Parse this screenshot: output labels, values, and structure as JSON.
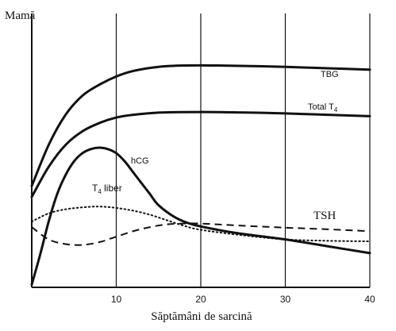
{
  "chart_data": {
    "type": "line",
    "title": "Mamă",
    "xlabel": "Săptămâni de sarcină",
    "ylabel": "",
    "xlim": [
      0,
      40
    ],
    "ylim": [
      0,
      100
    ],
    "xticks": [
      10,
      20,
      30,
      40
    ],
    "grid": "vertical",
    "series": [
      {
        "name": "TBG",
        "style": "solid",
        "x": [
          0,
          2,
          4,
          6,
          8,
          10,
          12,
          15,
          18,
          22,
          26,
          30,
          35,
          40
        ],
        "y": [
          37,
          52,
          63,
          70,
          74,
          77,
          79,
          80.5,
          81,
          81,
          80.8,
          80.5,
          80,
          79.5
        ]
      },
      {
        "name": "Total T4",
        "style": "solid",
        "x": [
          0,
          2,
          4,
          6,
          8,
          10,
          12,
          15,
          18,
          22,
          26,
          30,
          35,
          40
        ],
        "y": [
          33,
          44,
          52,
          57,
          60,
          62,
          63,
          63.8,
          64,
          64,
          63.8,
          63.5,
          63,
          62.5
        ]
      },
      {
        "name": "hCG",
        "style": "solid",
        "x": [
          0,
          1,
          2,
          3,
          4,
          5,
          6,
          7,
          8,
          9,
          10,
          11,
          12,
          13,
          14,
          15,
          17,
          19,
          22,
          25,
          30,
          35,
          40
        ],
        "y": [
          1,
          12,
          24,
          34,
          41,
          46,
          49,
          50.5,
          51,
          50.5,
          49,
          46,
          42,
          38,
          34,
          30,
          25.5,
          23,
          21,
          19.5,
          17.5,
          15,
          12.5
        ]
      },
      {
        "name": "T4 liber",
        "style": "dotted",
        "x": [
          0,
          2,
          4,
          6,
          8,
          10,
          12,
          14,
          16,
          18,
          20,
          25,
          30,
          35,
          40
        ],
        "y": [
          24,
          27,
          28.5,
          29.2,
          29.5,
          29,
          28,
          26.5,
          24.5,
          22.5,
          21,
          19,
          17.5,
          17,
          16.8
        ]
      },
      {
        "name": "TSH",
        "style": "dashed",
        "x": [
          0,
          2,
          4,
          6,
          8,
          10,
          12,
          14,
          16,
          18,
          20,
          25,
          30,
          35,
          40
        ],
        "y": [
          22,
          17.5,
          15.8,
          15.5,
          16.5,
          18.5,
          20.5,
          22,
          23,
          23.3,
          23.3,
          22.5,
          21.8,
          21.2,
          20.5
        ]
      }
    ],
    "annotations": {
      "tbg": "TBG",
      "total_t4_main": "Total T",
      "total_t4_sub": "4",
      "hcg": "hCG",
      "t4_liber_main": "T",
      "t4_liber_sub": "4",
      "t4_liber_rest": " liber",
      "tsh": "TSH"
    }
  }
}
